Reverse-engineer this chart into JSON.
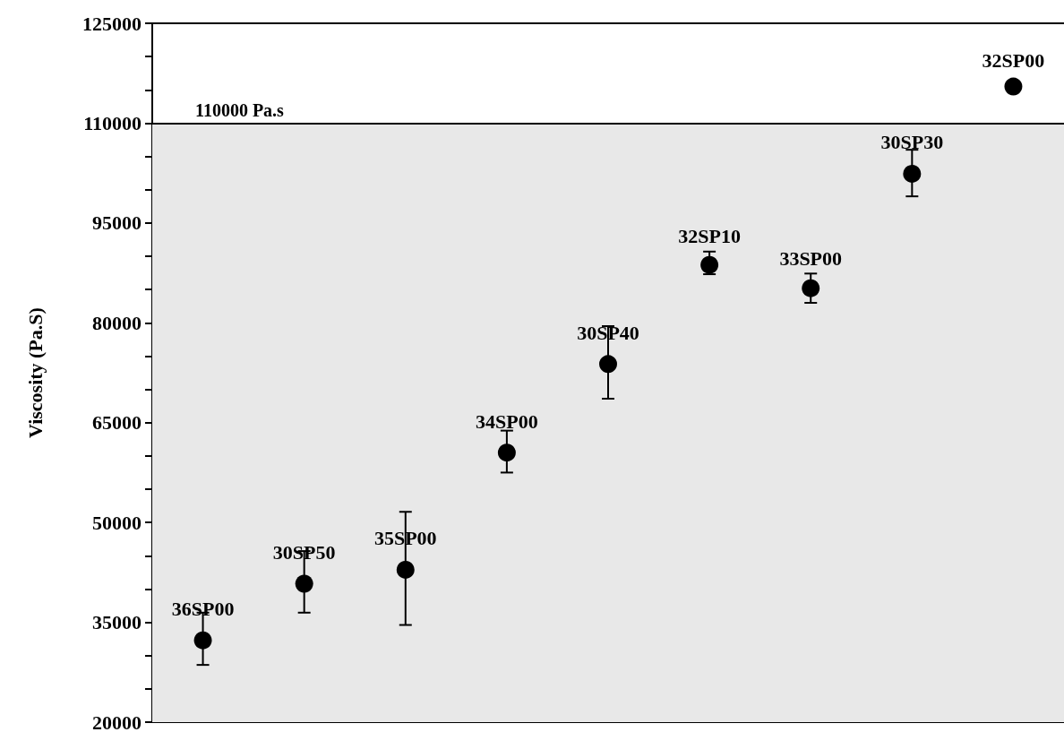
{
  "chart_data": {
    "type": "scatter",
    "ylabel": "Viscosity (Pa.S)",
    "categories": [
      null,
      null,
      null,
      null,
      null,
      null,
      null,
      null,
      null
    ],
    "series": [
      {
        "name": "36SP00",
        "color": "#000000",
        "values": [
          32300,
          null,
          null,
          null,
          null,
          null,
          null,
          null,
          null
        ],
        "errors": [
          [
            28600,
            36450
          ],
          null,
          null,
          null,
          null,
          null,
          null,
          null,
          null
        ]
      },
      {
        "name": "30SP50",
        "color": "#000000",
        "values": [
          null,
          40800,
          null,
          null,
          null,
          null,
          null,
          null,
          null
        ],
        "errors": [
          null,
          [
            36450,
            45700
          ],
          null,
          null,
          null,
          null,
          null,
          null,
          null
        ]
      },
      {
        "name": "35SP00",
        "color": "#000000",
        "values": [
          null,
          null,
          42900,
          null,
          null,
          null,
          null,
          null,
          null
        ],
        "errors": [
          null,
          null,
          [
            34600,
            51600
          ],
          null,
          null,
          null,
          null,
          null,
          null
        ]
      },
      {
        "name": "34SP00",
        "color": "#000000",
        "values": [
          null,
          null,
          null,
          60500,
          null,
          null,
          null,
          null,
          null
        ],
        "errors": [
          null,
          null,
          null,
          [
            57500,
            63800
          ],
          null,
          null,
          null,
          null,
          null
        ]
      },
      {
        "name": "30SP40",
        "color": "#000000",
        "values": [
          null,
          null,
          null,
          null,
          73800,
          null,
          null,
          null,
          null
        ],
        "errors": [
          null,
          null,
          null,
          null,
          [
            68600,
            79500
          ],
          null,
          null,
          null,
          null
        ]
      },
      {
        "name": "32SP10",
        "color": "#000000",
        "values": [
          null,
          null,
          null,
          null,
          null,
          88700,
          null,
          null,
          null
        ],
        "errors": [
          null,
          null,
          null,
          null,
          null,
          [
            87300,
            90700
          ],
          null,
          null,
          null
        ]
      },
      {
        "name": "33SP00",
        "color": "#000000",
        "values": [
          null,
          null,
          null,
          null,
          null,
          null,
          85200,
          null,
          null
        ],
        "errors": [
          null,
          null,
          null,
          null,
          null,
          null,
          [
            83000,
            87400
          ],
          null,
          null
        ]
      },
      {
        "name": "30SP30",
        "color": "#000000",
        "values": [
          null,
          null,
          null,
          null,
          null,
          null,
          null,
          102400,
          null
        ],
        "errors": [
          null,
          null,
          null,
          null,
          null,
          null,
          null,
          [
            99000,
            106000
          ],
          null
        ]
      },
      {
        "name": "32SP00",
        "color": "#000000",
        "values": [
          null,
          null,
          null,
          null,
          null,
          null,
          null,
          null,
          115500
        ]
      }
    ],
    "ylim": [
      20000,
      125000
    ],
    "yticks": [
      20000,
      {
        "value": 25000,
        "label": null
      },
      {
        "value": 30000,
        "label": null
      },
      35000,
      {
        "value": 40000,
        "label": null
      },
      {
        "value": 45000,
        "label": null
      },
      50000,
      {
        "value": 55000,
        "label": null
      },
      {
        "value": 60000,
        "label": null
      },
      65000,
      {
        "value": 70000,
        "label": null
      },
      {
        "value": 75000,
        "label": null
      },
      80000,
      {
        "value": 85000,
        "label": null
      },
      {
        "value": 90000,
        "label": null
      },
      95000,
      {
        "value": 100000,
        "label": null
      },
      {
        "value": 105000,
        "label": null
      },
      110000,
      {
        "value": 115000,
        "label": null
      },
      {
        "value": 120000,
        "label": null
      },
      125000
    ],
    "ref_lines": [
      {
        "axis": "y",
        "value": 110000,
        "label": "110000 Pa.s",
        "color": "#000000",
        "line_style": "solid"
      }
    ],
    "bands": [
      {
        "axis": "y",
        "from": 20000,
        "to": 110000,
        "color": "#e8e8e8"
      }
    ],
    "tick_labels": "y",
    "marker": "circle",
    "grid": false,
    "legend": false
  }
}
